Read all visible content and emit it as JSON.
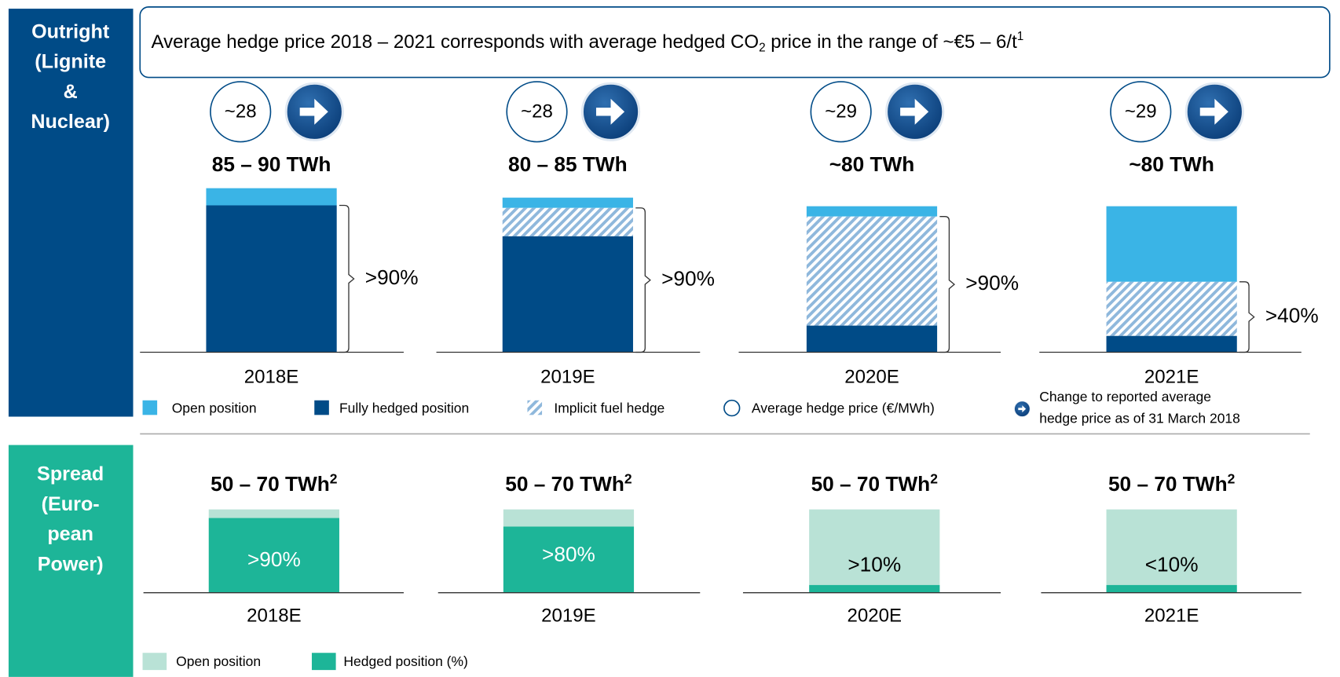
{
  "outright": {
    "label_lines": [
      "Outright",
      "(Lignite",
      "&",
      "Nuclear)"
    ],
    "headline": {
      "text": "Average hedge price 2018 – 2021 corresponds with average hedged CO",
      "subscript": "2",
      "text_after": " price in the range of ~€5 – 6/t",
      "footnote": "1"
    },
    "years": [
      {
        "year": "2018E",
        "volume": "85 – 90 TWh",
        "hedge_price": "~28",
        "hedged_share": ">90%"
      },
      {
        "year": "2019E",
        "volume": "80 – 85 TWh",
        "hedge_price": "~28",
        "hedged_share": ">90%"
      },
      {
        "year": "2020E",
        "volume": "~80 TWh",
        "hedge_price": "~29",
        "hedged_share": ">90%"
      },
      {
        "year": "2021E",
        "volume": "~80 TWh",
        "hedge_price": "~29",
        "hedged_share": ">40%"
      }
    ],
    "legend": [
      "Open position",
      "Fully hedged position",
      "Implicit fuel hedge",
      "Average hedge price (€/MWh)"
    ],
    "legend_arrow_lines": [
      "Change to reported average",
      "hedge price as of 31 March 2018"
    ]
  },
  "spread": {
    "label_lines": [
      "Spread",
      "(Euro-",
      "pean",
      "Power)"
    ],
    "years": [
      {
        "year": "2018E",
        "volume": "50 – 70 TWh",
        "footnote": "2",
        "hedged_share": ">90%"
      },
      {
        "year": "2019E",
        "volume": "50 – 70 TWh",
        "footnote": "2",
        "hedged_share": ">80%"
      },
      {
        "year": "2020E",
        "volume": "50 – 70 TWh",
        "footnote": "2",
        "hedged_share": ">10%"
      },
      {
        "year": "2021E",
        "volume": "50 – 70 TWh",
        "footnote": "2",
        "hedged_share": "<10%"
      }
    ],
    "legend": [
      "Open position",
      "Hedged position (%)"
    ]
  }
}
